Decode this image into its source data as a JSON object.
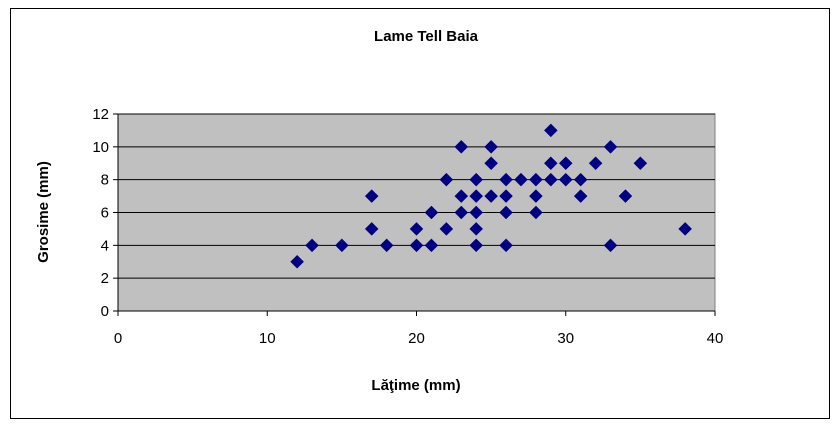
{
  "chart_data": {
    "type": "scatter",
    "title": "Lame Tell Baia",
    "xlabel": "Lăţime (mm)",
    "ylabel": "Grosime (mm)",
    "xlim": [
      0,
      40
    ],
    "ylim": [
      0,
      12
    ],
    "xticks": [
      0,
      10,
      20,
      30,
      40
    ],
    "yticks": [
      0,
      2,
      4,
      6,
      8,
      10,
      12
    ],
    "grid": "horizontal",
    "legend": "none",
    "plot_background": "#c0c0c0",
    "marker_color": "#000080",
    "marker": "diamond",
    "points": [
      [
        12,
        3
      ],
      [
        13,
        4
      ],
      [
        15,
        4
      ],
      [
        17,
        7
      ],
      [
        17,
        5
      ],
      [
        18,
        4
      ],
      [
        20,
        5
      ],
      [
        20,
        4
      ],
      [
        21,
        6
      ],
      [
        21,
        4
      ],
      [
        22,
        8
      ],
      [
        22,
        5
      ],
      [
        23,
        10
      ],
      [
        23,
        7
      ],
      [
        23,
        6
      ],
      [
        24,
        8
      ],
      [
        24,
        7
      ],
      [
        24,
        6
      ],
      [
        24,
        5
      ],
      [
        24,
        4
      ],
      [
        25,
        10
      ],
      [
        25,
        9
      ],
      [
        25,
        7
      ],
      [
        26,
        8
      ],
      [
        26,
        7
      ],
      [
        26,
        6
      ],
      [
        26,
        4
      ],
      [
        27,
        8
      ],
      [
        28,
        8
      ],
      [
        28,
        7
      ],
      [
        28,
        6
      ],
      [
        29,
        11
      ],
      [
        29,
        9
      ],
      [
        29,
        8
      ],
      [
        30,
        9
      ],
      [
        30,
        8
      ],
      [
        31,
        8
      ],
      [
        31,
        7
      ],
      [
        32,
        9
      ],
      [
        33,
        10
      ],
      [
        33,
        4
      ],
      [
        34,
        7
      ],
      [
        35,
        9
      ],
      [
        38,
        5
      ]
    ]
  }
}
